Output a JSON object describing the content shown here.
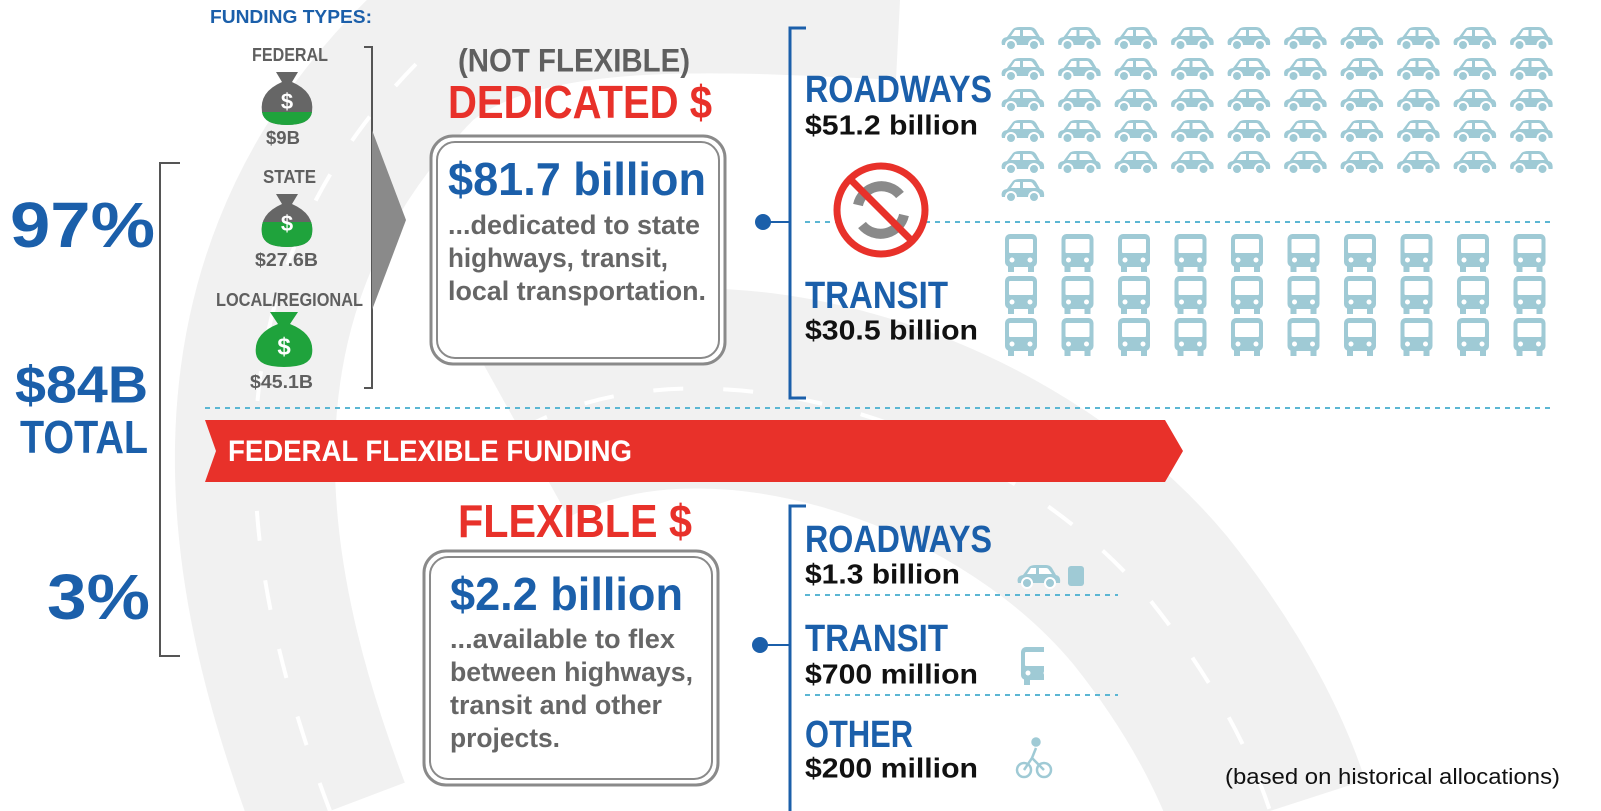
{
  "funding_types": {
    "title": "FUNDING TYPES:",
    "items": [
      {
        "label": "FEDERAL",
        "amount": "$9B"
      },
      {
        "label": "STATE",
        "amount": "$27.6B"
      },
      {
        "label": "LOCAL/REGIONAL",
        "amount": "$45.1B"
      }
    ]
  },
  "totals": {
    "dedicated_share": "97%",
    "total": "$84B",
    "total_label": "TOTAL",
    "flexible_share": "3%"
  },
  "dedicated": {
    "note": "(NOT FLEXIBLE)",
    "title": "DEDICATED $",
    "amount": "$81.7 billion",
    "description": [
      "...dedicated to state",
      "highways, transit,",
      "local transportation."
    ],
    "breakdown": [
      {
        "label": "ROADWAYS",
        "amount": "$51.2 billion"
      },
      {
        "label": "TRANSIT",
        "amount": "$30.5 billion"
      }
    ]
  },
  "banner": "FEDERAL FLEXIBLE FUNDING",
  "flexible": {
    "title": "FLEXIBLE $",
    "amount": "$2.2 billion",
    "description": [
      "...available to flex",
      "between highways,",
      "transit and other",
      "projects."
    ],
    "breakdown": [
      {
        "label": "ROADWAYS",
        "amount": "$1.3 billion"
      },
      {
        "label": "TRANSIT",
        "amount": "$700 million"
      },
      {
        "label": "OTHER",
        "amount": "$200 million"
      }
    ]
  },
  "footnote": "(based on historical allocations)"
}
